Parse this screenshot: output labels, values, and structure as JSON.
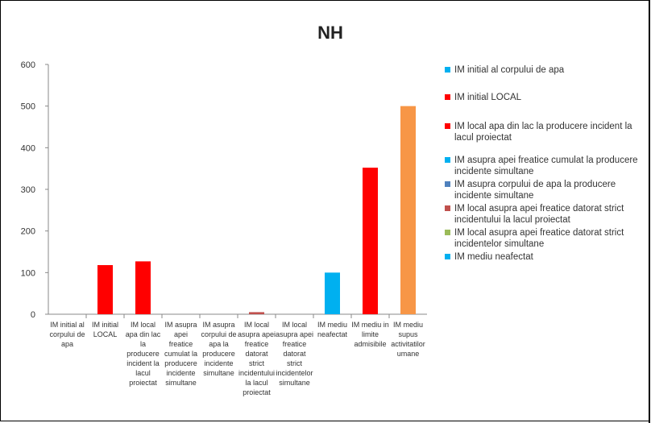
{
  "chart_data": {
    "type": "bar",
    "title": "NH",
    "ylim": [
      0,
      600
    ],
    "yticks": [
      0,
      100,
      200,
      300,
      400,
      500,
      600
    ],
    "grid": false,
    "legend_position": "right",
    "categories": [
      [
        "IM initial al",
        "corpului de",
        "apa"
      ],
      [
        "IM initial",
        "LOCAL"
      ],
      [
        "IM local",
        "apa din lac",
        "la",
        "producere",
        "incident la",
        "lacul",
        "proiectat"
      ],
      [
        "IM asupra",
        "apei",
        "freatice",
        "cumulat la",
        "producere",
        "incidente",
        "simultane"
      ],
      [
        "IM asupra",
        "corpului de",
        "apa la",
        "producere",
        "incidente",
        "simultane"
      ],
      [
        "IM local",
        "asupra apei",
        "freatice",
        "datorat",
        "strict",
        "incidentului",
        "la lacul",
        "proiectat"
      ],
      [
        "IM local",
        "asupra apei",
        "freatice",
        "datorat",
        "strict",
        "incidentelor",
        "simultane"
      ],
      [
        "IM mediu",
        "neafectat"
      ],
      [
        "IM mediu in",
        "limite",
        "admisibile"
      ],
      [
        "IM mediu",
        "supus",
        "activitatilor",
        "umane"
      ]
    ],
    "values": [
      0,
      118,
      127,
      0,
      0,
      5,
      0,
      100,
      352,
      500
    ],
    "colors": [
      "#00b0f0",
      "#ff0000",
      "#ff0000",
      "#00b0f0",
      "#4f81bd",
      "#c0504d",
      "#9bbb59",
      "#00b0f0",
      "#ff0000",
      "#f79646"
    ],
    "legend": [
      {
        "label": "IM initial al corpului de apa",
        "color": "#00b0f0"
      },
      {
        "label": "IM initial LOCAL",
        "color": "#ff0000"
      },
      {
        "label": "IM local apa din lac la producere incident la lacul proiectat",
        "color": "#ff0000"
      },
      {
        "label": "IM asupra apei freatice cumulat la producere incidente simultane",
        "color": "#00b0f0"
      },
      {
        "label": "IM asupra corpului de apa la producere incidente simultane",
        "color": "#4f81bd"
      },
      {
        "label": "IM local asupra apei freatice datorat strict incidentului la lacul proiectat",
        "color": "#c0504d"
      },
      {
        "label": "IM local asupra apei freatice datorat strict incidentelor simultane",
        "color": "#9bbb59"
      },
      {
        "label": "IM mediu neafectat",
        "color": "#00b0f0"
      }
    ]
  }
}
